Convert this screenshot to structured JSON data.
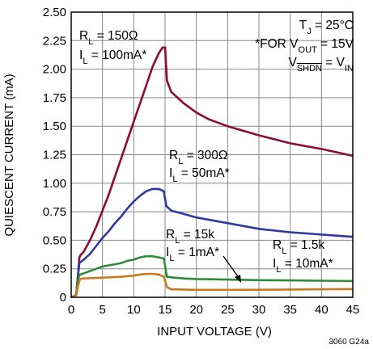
{
  "chart_data": {
    "type": "line",
    "xlabel": "INPUT VOLTAGE (V)",
    "ylabel": "QUIESCENT CURRENT (mA)",
    "xlim": [
      0,
      45
    ],
    "ylim": [
      0,
      2.5
    ],
    "x_ticks": [
      "0",
      "5",
      "10",
      "15",
      "20",
      "25",
      "30",
      "35",
      "40",
      "45"
    ],
    "y_ticks": [
      "0",
      "0.25",
      "0.50",
      "0.75",
      "1.00",
      "1.25",
      "1.50",
      "1.75",
      "2.00",
      "2.25",
      "2.50"
    ],
    "grid": true,
    "figure_code": "3060 G24a",
    "conditions": {
      "line1": {
        "a": "T",
        "a_sub": "J",
        "b": " = 25°C"
      },
      "line2": {
        "a": "*FOR V",
        "a_sub": "OUT",
        "b": " = 15V"
      },
      "line3": {
        "a": "V",
        "a_sub": "SHDN",
        "b": " = V",
        "b_sub": "IN"
      }
    },
    "series": [
      {
        "color": "#8b0a3a",
        "label1": {
          "a": "R",
          "sub": "L",
          "b": " = 150Ω"
        },
        "label2": {
          "a": "I",
          "sub": "L",
          "b": " = 100mA*"
        },
        "x": [
          0,
          0.8,
          1.1,
          1.3,
          1.5,
          2,
          3,
          4,
          5,
          6,
          7,
          8,
          9,
          10,
          11,
          12,
          13,
          14,
          14.6,
          15,
          15.3,
          16,
          18,
          20,
          22,
          25,
          30,
          35,
          40,
          45
        ],
        "y": [
          0,
          0.02,
          0.2,
          0.35,
          0.37,
          0.4,
          0.5,
          0.62,
          0.76,
          0.9,
          1.06,
          1.22,
          1.38,
          1.54,
          1.7,
          1.86,
          2.02,
          2.14,
          2.19,
          2.19,
          1.9,
          1.8,
          1.7,
          1.62,
          1.56,
          1.5,
          1.42,
          1.35,
          1.3,
          1.24
        ]
      },
      {
        "color": "#2e3aa0",
        "label1": {
          "a": "R",
          "sub": "L",
          "b": " = 300Ω"
        },
        "label2": {
          "a": "I",
          "sub": "L",
          "b": " = 50mA*"
        },
        "x": [
          0,
          0.8,
          1.1,
          1.3,
          1.5,
          2,
          3,
          4,
          5,
          6,
          7,
          8,
          9,
          10,
          11,
          12,
          13,
          14,
          14.8,
          15.2,
          16,
          18,
          20,
          25,
          30,
          35,
          40,
          45
        ],
        "y": [
          0,
          0.02,
          0.2,
          0.3,
          0.31,
          0.33,
          0.38,
          0.45,
          0.52,
          0.58,
          0.65,
          0.71,
          0.78,
          0.84,
          0.89,
          0.93,
          0.95,
          0.95,
          0.93,
          0.8,
          0.76,
          0.73,
          0.7,
          0.65,
          0.6,
          0.57,
          0.55,
          0.53
        ]
      },
      {
        "color": "#2e8b3a",
        "label1": {
          "a": "R",
          "sub": "L",
          "b": " = 15k"
        },
        "label2": {
          "a": "I",
          "sub": "L",
          "b": " = 1mA*"
        },
        "x": [
          0,
          0.8,
          1.1,
          1.3,
          1.5,
          2,
          3,
          4,
          5,
          6,
          7,
          8,
          9,
          10,
          11,
          12,
          13,
          14,
          14.8,
          15.3,
          16,
          18,
          20,
          25,
          30,
          35,
          40,
          45
        ],
        "y": [
          0,
          0.02,
          0.15,
          0.2,
          0.2,
          0.21,
          0.23,
          0.25,
          0.27,
          0.28,
          0.29,
          0.3,
          0.32,
          0.33,
          0.35,
          0.36,
          0.36,
          0.35,
          0.34,
          0.18,
          0.175,
          0.165,
          0.16,
          0.155,
          0.15,
          0.148,
          0.145,
          0.142
        ]
      },
      {
        "color": "#c87a1e",
        "label1": {
          "a": "R",
          "sub": "L",
          "b": " = 1.5k"
        },
        "label2": {
          "a": "I",
          "sub": "L",
          "b": " = 10mA*"
        },
        "x": [
          0,
          0.8,
          1.1,
          1.4,
          2,
          4,
          6,
          8,
          10,
          11,
          12,
          13,
          14,
          14.8,
          15.3,
          16,
          20,
          25,
          30,
          35,
          40,
          45
        ],
        "y": [
          0,
          0.02,
          0.1,
          0.16,
          0.165,
          0.17,
          0.175,
          0.18,
          0.19,
          0.2,
          0.205,
          0.205,
          0.2,
          0.18,
          0.09,
          0.07,
          0.065,
          0.065,
          0.066,
          0.068,
          0.07,
          0.072
        ]
      }
    ]
  }
}
